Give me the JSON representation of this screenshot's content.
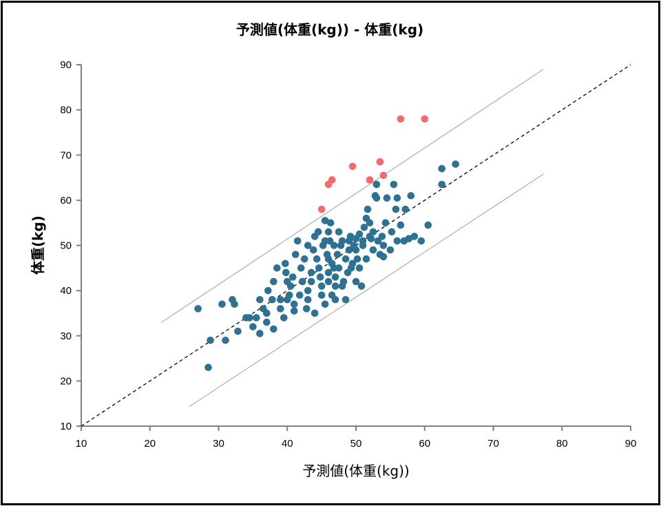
{
  "chart_data": {
    "type": "scatter",
    "title": "予測値(体重(kg)) - 体重(kg)",
    "xlabel": "予測値(体重(kg))",
    "ylabel": "体重(kg)",
    "xlim": [
      10,
      90
    ],
    "ylim": [
      10,
      90
    ],
    "xticks": [
      10,
      20,
      30,
      40,
      50,
      60,
      70,
      80,
      90
    ],
    "yticks": [
      10,
      20,
      30,
      40,
      50,
      60,
      70,
      80,
      90
    ],
    "colors": {
      "inlier": "#2e7192",
      "outlier": "#f26b6b",
      "band": "#a6a6a6",
      "identity": "#000000",
      "axis": "#7f7f7f"
    },
    "reference_lines": [
      {
        "name": "identity",
        "style": "dashed",
        "x": [
          10,
          90
        ],
        "y": [
          10,
          90
        ]
      },
      {
        "name": "upper",
        "style": "solid",
        "x": [
          21.7,
          77.3
        ],
        "y": [
          33,
          89
        ]
      },
      {
        "name": "lower",
        "style": "solid",
        "x": [
          25.7,
          77.3
        ],
        "y": [
          14.3,
          65.8
        ]
      }
    ],
    "series": [
      {
        "points": [
          [
            27,
            36
          ],
          [
            28.5,
            23
          ],
          [
            28.8,
            29
          ],
          [
            31,
            29
          ],
          [
            30.5,
            37
          ],
          [
            32,
            38
          ],
          [
            32.3,
            37
          ],
          [
            32.8,
            31
          ],
          [
            34,
            34
          ],
          [
            34.5,
            34
          ],
          [
            35,
            32
          ],
          [
            35.5,
            34
          ],
          [
            36,
            30.5
          ],
          [
            36,
            38
          ],
          [
            36.5,
            36
          ],
          [
            37,
            33
          ],
          [
            37,
            35
          ],
          [
            37.2,
            40
          ],
          [
            37.8,
            38
          ],
          [
            38,
            31.5
          ],
          [
            38,
            42
          ],
          [
            38.5,
            45
          ],
          [
            39,
            38
          ],
          [
            39,
            36
          ],
          [
            39.5,
            34
          ],
          [
            39.7,
            46
          ],
          [
            39.8,
            44
          ],
          [
            40,
            38
          ],
          [
            40,
            42
          ],
          [
            40.3,
            39
          ],
          [
            40.5,
            41
          ],
          [
            40.8,
            43
          ],
          [
            41,
            35.5
          ],
          [
            41,
            37
          ],
          [
            41.2,
            48
          ],
          [
            41.5,
            51
          ],
          [
            41.8,
            39
          ],
          [
            42,
            45
          ],
          [
            42.2,
            42
          ],
          [
            42.5,
            47
          ],
          [
            42.8,
            36
          ],
          [
            43,
            50
          ],
          [
            43,
            40
          ],
          [
            43,
            38
          ],
          [
            43.5,
            44
          ],
          [
            43.5,
            42
          ],
          [
            43.8,
            49
          ],
          [
            44,
            52
          ],
          [
            44,
            35
          ],
          [
            44.3,
            47
          ],
          [
            44.5,
            53
          ],
          [
            44.6,
            45
          ],
          [
            44.8,
            43
          ],
          [
            45,
            39
          ],
          [
            45,
            41
          ],
          [
            45.2,
            50
          ],
          [
            45.5,
            51
          ],
          [
            45.5,
            37
          ],
          [
            45.5,
            55.5
          ],
          [
            45.8,
            48
          ],
          [
            46,
            53
          ],
          [
            46,
            47
          ],
          [
            46,
            44
          ],
          [
            46,
            42
          ],
          [
            46.2,
            51
          ],
          [
            46.3,
            55
          ],
          [
            46.5,
            46
          ],
          [
            46.5,
            39
          ],
          [
            46.8,
            45
          ],
          [
            46.8,
            50
          ],
          [
            47,
            43
          ],
          [
            47,
            38
          ],
          [
            47,
            41
          ],
          [
            47.3,
            48
          ],
          [
            47.5,
            53
          ],
          [
            47.5,
            45
          ],
          [
            47.8,
            50
          ],
          [
            48,
            51
          ],
          [
            48,
            41
          ],
          [
            48.2,
            42
          ],
          [
            48.5,
            38
          ],
          [
            48.5,
            47
          ],
          [
            48.8,
            44
          ],
          [
            49,
            49
          ],
          [
            49,
            51
          ],
          [
            49.2,
            52
          ],
          [
            49.3,
            45
          ],
          [
            49.5,
            46
          ],
          [
            49.7,
            50
          ],
          [
            50,
            49
          ],
          [
            50,
            51.5
          ],
          [
            50,
            42
          ],
          [
            50.2,
            47
          ],
          [
            50.5,
            45
          ],
          [
            50.5,
            52.5
          ],
          [
            50.8,
            41
          ],
          [
            51,
            51
          ],
          [
            51,
            50
          ],
          [
            51.2,
            54
          ],
          [
            51.5,
            56
          ],
          [
            51.5,
            47
          ],
          [
            51.7,
            58
          ],
          [
            52,
            55
          ],
          [
            52,
            52
          ],
          [
            52.2,
            51.5
          ],
          [
            52.5,
            49
          ],
          [
            52.5,
            53
          ],
          [
            52.8,
            61
          ],
          [
            53,
            60.5
          ],
          [
            53,
            63.5
          ],
          [
            53.2,
            51
          ],
          [
            53.5,
            48
          ],
          [
            53.8,
            52
          ],
          [
            54,
            50
          ],
          [
            54,
            47.5
          ],
          [
            54.3,
            55
          ],
          [
            54.5,
            60.5
          ],
          [
            55,
            49
          ],
          [
            55.2,
            53
          ],
          [
            55.5,
            63.5
          ],
          [
            55.8,
            58
          ],
          [
            56,
            60.5
          ],
          [
            56,
            51
          ],
          [
            56.5,
            54.5
          ],
          [
            57,
            51
          ],
          [
            57.2,
            58
          ],
          [
            57.7,
            51.5
          ],
          [
            58,
            61
          ],
          [
            58.5,
            52
          ],
          [
            59.5,
            51
          ],
          [
            60.5,
            54.5
          ],
          [
            62.5,
            67
          ],
          [
            62.5,
            63.5
          ],
          [
            64.5,
            68
          ]
        ]
      },
      {
        "points": [
          [
            45,
            58
          ],
          [
            46,
            63.5
          ],
          [
            46.5,
            64.5
          ],
          [
            49.5,
            67.5
          ],
          [
            52,
            64.5
          ],
          [
            53.5,
            68.5
          ],
          [
            54,
            65.5
          ],
          [
            56.5,
            78
          ],
          [
            60,
            78
          ]
        ]
      }
    ]
  }
}
